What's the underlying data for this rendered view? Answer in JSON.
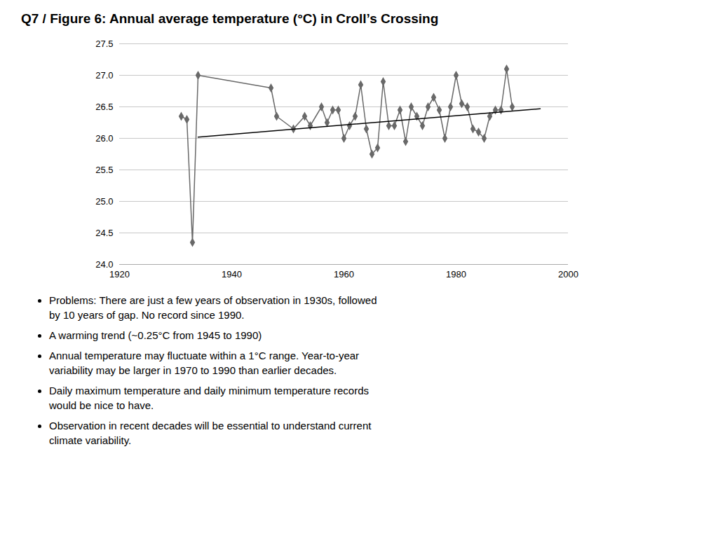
{
  "chart_data": {
    "type": "line",
    "title": "Q7 / Figure 6: Annual average temperature (°C) in Croll’s Crossing",
    "series": [
      {
        "color": "#696969",
        "marker": "diamond",
        "x": [
          1931,
          1932,
          1933,
          1934,
          1947,
          1948,
          1951,
          1953,
          1954,
          1956,
          1957,
          1958,
          1959,
          1960,
          1961,
          1962,
          1963,
          1964,
          1965,
          1966,
          1967,
          1968,
          1969,
          1970,
          1971,
          1972,
          1973,
          1974,
          1975,
          1976,
          1977,
          1978,
          1979,
          1980,
          1981,
          1982,
          1983,
          1984,
          1985,
          1986,
          1987,
          1988,
          1989,
          1990
        ],
        "values": [
          26.35,
          26.3,
          24.35,
          27.0,
          26.8,
          26.35,
          26.15,
          26.35,
          26.2,
          26.5,
          26.25,
          26.45,
          26.45,
          26.0,
          26.2,
          26.35,
          26.85,
          26.15,
          25.75,
          25.85,
          26.9,
          26.2,
          26.2,
          26.45,
          25.95,
          26.5,
          26.35,
          26.2,
          26.5,
          26.65,
          26.45,
          26.0,
          26.5,
          27.0,
          26.55,
          26.5,
          26.15,
          26.1,
          26.0,
          26.35,
          26.45,
          26.45,
          27.1,
          26.5
        ]
      },
      {
        "color": "#000000",
        "marker": "none",
        "x": [
          1934,
          1995
        ],
        "values": [
          26.02,
          26.47
        ]
      }
    ],
    "xlim": [
      1920,
      2000
    ],
    "xticks": [
      1920,
      1940,
      1960,
      1980,
      2000
    ],
    "ylim": [
      24.0,
      27.5
    ],
    "yticks": [
      {
        "value": 24.0,
        "label": "24.0"
      },
      24.5,
      {
        "value": 25.0,
        "label": "25.0"
      },
      25.5,
      {
        "value": 26.0,
        "label": "26.0"
      },
      26.5,
      {
        "value": 27.0,
        "label": "27.0"
      },
      27.5
    ],
    "grid": "y",
    "annotations": [
      "Problems: There are just a few years of observation in 1930s, followed\nby 10 years of gap. No record since 1990.",
      "A warming trend (~0.25°C from 1945 to 1990)",
      "Annual temperature may fluctuate within a 1°C range. Year-to-year\nvariability may be larger in 1970 to 1990 than earlier decades.",
      "Daily maximum temperature and daily minimum temperature records\nwould be nice to have.",
      "Observation in recent decades will be essential to understand current\nclimate variability."
    ]
  }
}
